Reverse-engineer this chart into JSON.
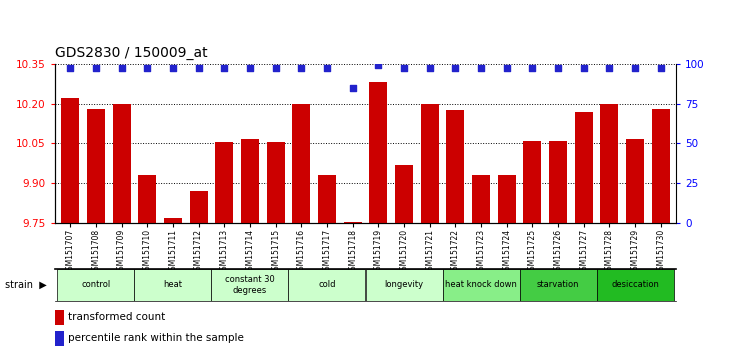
{
  "title": "GDS2830 / 150009_at",
  "samples": [
    "GSM151707",
    "GSM151708",
    "GSM151709",
    "GSM151710",
    "GSM151711",
    "GSM151712",
    "GSM151713",
    "GSM151714",
    "GSM151715",
    "GSM151716",
    "GSM151717",
    "GSM151718",
    "GSM151719",
    "GSM151720",
    "GSM151721",
    "GSM151722",
    "GSM151723",
    "GSM151724",
    "GSM151725",
    "GSM151726",
    "GSM151727",
    "GSM151728",
    "GSM151729",
    "GSM151730"
  ],
  "values": [
    10.22,
    10.18,
    10.2,
    9.93,
    9.77,
    9.87,
    10.055,
    10.065,
    10.055,
    10.2,
    9.93,
    9.755,
    10.28,
    9.97,
    10.2,
    10.175,
    9.93,
    9.93,
    10.06,
    10.06,
    10.17,
    10.2,
    10.065,
    10.18
  ],
  "percentile_values": [
    97,
    97,
    97,
    97,
    97,
    97,
    97,
    97,
    97,
    97,
    97,
    85,
    99,
    97,
    97,
    97,
    97,
    97,
    97,
    97,
    97,
    97,
    97,
    97
  ],
  "bar_color": "#cc0000",
  "dot_color": "#2222cc",
  "ylim_left": [
    9.75,
    10.35
  ],
  "ylim_right": [
    0,
    100
  ],
  "yticks_left": [
    9.75,
    9.9,
    10.05,
    10.2,
    10.35
  ],
  "yticks_right": [
    0,
    25,
    50,
    75,
    100
  ],
  "groups": [
    {
      "label": "control",
      "start": 0,
      "end": 2,
      "color": "#ccffcc"
    },
    {
      "label": "heat",
      "start": 3,
      "end": 5,
      "color": "#ccffcc"
    },
    {
      "label": "constant 30\ndegrees",
      "start": 6,
      "end": 8,
      "color": "#ccffcc"
    },
    {
      "label": "cold",
      "start": 9,
      "end": 11,
      "color": "#ccffcc"
    },
    {
      "label": "longevity",
      "start": 12,
      "end": 14,
      "color": "#ccffcc"
    },
    {
      "label": "heat knock down",
      "start": 15,
      "end": 17,
      "color": "#88ee88"
    },
    {
      "label": "starvation",
      "start": 18,
      "end": 20,
      "color": "#44cc44"
    },
    {
      "label": "desiccation",
      "start": 21,
      "end": 23,
      "color": "#22bb22"
    }
  ],
  "legend_bar_label": "transformed count",
  "legend_dot_label": "percentile rank within the sample",
  "strain_label": "strain"
}
